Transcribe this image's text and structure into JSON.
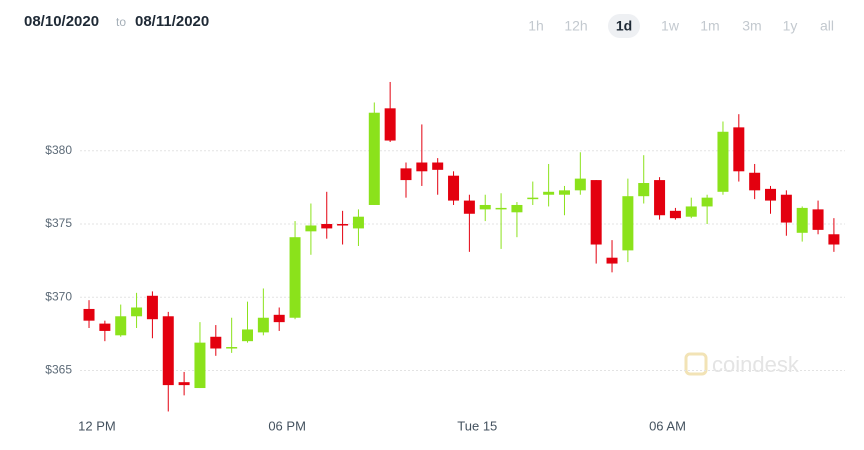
{
  "header": {
    "from": "08/10/2020",
    "to_word": "to",
    "to": "08/11/2020",
    "ranges": [
      "1h",
      "12h",
      "1d",
      "1w",
      "1m",
      "3m",
      "1y",
      "all"
    ],
    "selected_range": "1d"
  },
  "watermark": "coindesk",
  "chart_data": {
    "type": "candlestick",
    "x": [
      11.75,
      12.25,
      12.75,
      13.25,
      13.75,
      14.25,
      14.75,
      15.25,
      15.75,
      16.25,
      16.75,
      17.25,
      17.75,
      18.25,
      18.75,
      19.25,
      19.75,
      20.25,
      20.75,
      21.25,
      21.75,
      22.25,
      22.75,
      23.25,
      23.75,
      24.25,
      24.75,
      25.25,
      25.75,
      26.25,
      26.75,
      27.25,
      27.75,
      28.25,
      28.75,
      29.25,
      29.75,
      30.25,
      30.75,
      31.25,
      31.75,
      32.25,
      32.75,
      33.25,
      33.75,
      34.25,
      34.75,
      35.25
    ],
    "open": [
      369.2,
      368.2,
      367.4,
      368.7,
      370.1,
      368.7,
      364.2,
      363.8,
      367.3,
      366.5,
      367.0,
      367.6,
      368.8,
      368.6,
      374.5,
      375.0,
      375.0,
      374.7,
      376.3,
      382.9,
      378.8,
      379.2,
      379.2,
      378.3,
      376.6,
      376.0,
      376.0,
      375.8,
      376.7,
      377.0,
      377.0,
      377.3,
      378.0,
      372.7,
      373.2,
      376.9,
      378.0,
      375.9,
      375.5,
      376.2,
      377.2,
      381.6,
      378.5,
      377.4,
      377.0,
      374.4,
      376.0,
      374.3
    ],
    "high": [
      369.8,
      368.4,
      369.5,
      370.3,
      370.4,
      369.0,
      364.9,
      368.3,
      368.1,
      368.6,
      369.7,
      370.6,
      369.3,
      375.2,
      376.4,
      377.2,
      375.9,
      376.0,
      383.3,
      384.7,
      379.2,
      381.8,
      379.5,
      378.6,
      377.0,
      377.0,
      377.1,
      376.5,
      377.9,
      379.1,
      377.6,
      379.9,
      378.0,
      373.9,
      378.1,
      379.7,
      378.2,
      376.1,
      376.8,
      377.0,
      382.0,
      382.5,
      379.1,
      377.6,
      377.3,
      376.2,
      376.6,
      375.4
    ],
    "low": [
      367.9,
      367.0,
      367.3,
      367.9,
      367.2,
      362.2,
      363.3,
      363.8,
      366.0,
      366.2,
      366.9,
      367.4,
      367.7,
      368.5,
      372.9,
      374.0,
      373.6,
      373.5,
      376.3,
      380.6,
      376.8,
      377.6,
      377.0,
      376.3,
      373.1,
      375.2,
      373.3,
      374.1,
      376.3,
      376.2,
      375.6,
      377.0,
      372.3,
      371.7,
      372.4,
      376.4,
      375.3,
      375.3,
      375.4,
      375.0,
      377.0,
      377.9,
      376.7,
      375.7,
      374.2,
      373.8,
      374.3,
      373.1
    ],
    "close": [
      368.4,
      367.7,
      368.7,
      369.3,
      368.5,
      364.0,
      364.0,
      366.9,
      366.5,
      366.6,
      367.8,
      368.6,
      368.3,
      374.1,
      374.9,
      374.7,
      374.9,
      375.5,
      382.6,
      380.7,
      378.0,
      378.6,
      378.7,
      376.6,
      375.7,
      376.3,
      376.1,
      376.3,
      376.8,
      377.2,
      377.3,
      378.1,
      373.6,
      372.3,
      376.9,
      377.8,
      375.6,
      375.4,
      376.2,
      376.8,
      381.3,
      378.6,
      377.3,
      376.6,
      375.1,
      376.1,
      374.6,
      373.6
    ],
    "up_color": "#8be21b",
    "down_color": "#e3000f",
    "xlim": [
      11.15,
      35.6
    ],
    "xticks": [
      {
        "value": 12,
        "label": "12 PM"
      },
      {
        "value": 18,
        "label": "06 PM"
      },
      {
        "value": 24,
        "label": "Tue 15"
      },
      {
        "value": 30,
        "label": "06 AM"
      }
    ],
    "ylim": [
      362.3,
      386.2
    ],
    "yticks": [
      {
        "value": 365,
        "label": "$365"
      },
      {
        "value": 370,
        "label": "$370"
      },
      {
        "value": 375,
        "label": "$375"
      },
      {
        "value": 380,
        "label": "$380"
      }
    ],
    "grid": true
  }
}
